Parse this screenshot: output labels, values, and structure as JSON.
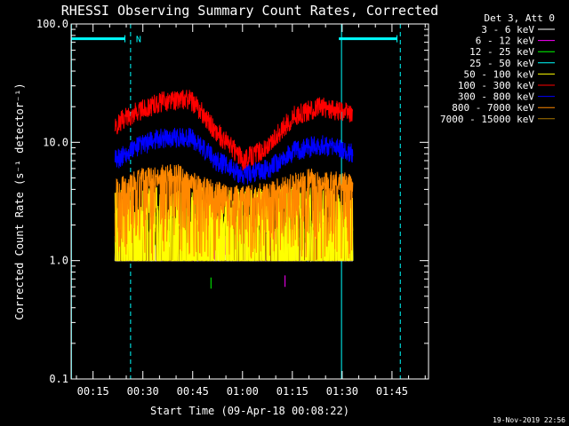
{
  "chart_data": {
    "type": "line",
    "title": "RHESSI Observing Summary Count Rates, Corrected",
    "xlabel": "Start Time (09-Apr-18 00:08:22)",
    "ylabel": "Corrected Count Rate (s⁻¹ detector⁻¹)",
    "y_scale": "log",
    "ylim": [
      0.1,
      100
    ],
    "y_tick_labels": [
      "100.0",
      "10.0",
      "1.0",
      "0.1"
    ],
    "y_tick_values": [
      100,
      10,
      1,
      0.1
    ],
    "xlim_minutes": [
      8.4,
      116
    ],
    "x_tick_labels": [
      "00:15",
      "00:30",
      "00:45",
      "01:00",
      "01:15",
      "01:30",
      "01:45"
    ],
    "x_tick_minutes": [
      15,
      30,
      45,
      60,
      75,
      90,
      105
    ],
    "legend_header": "Det 3, Att 0",
    "legend_placement": "right",
    "flag_label": "N",
    "night_bars": [
      {
        "start_minute": 8.4,
        "end_minute": 24.6,
        "y": 75
      },
      {
        "start_minute": 89,
        "end_minute": 106.5,
        "y": 75
      }
    ],
    "vlines_solid": [
      8.5,
      89.8
    ],
    "vlines_dashed": [
      26.3,
      107.5
    ],
    "data_window_minutes": [
      21.6,
      93.2
    ],
    "series": [
      {
        "name": "3 - 6 keV",
        "color": "#ffffff",
        "level": 1.1
      },
      {
        "name": "6 - 12 keV",
        "color": "#ff00ff",
        "level": 1.3
      },
      {
        "name": "12 - 25 keV",
        "color": "#00ff00",
        "level": 1.3
      },
      {
        "name": "25 - 50 keV",
        "color": "#00ffff",
        "level": 1.2
      },
      {
        "name": "50 - 100 keV",
        "color": "#ffff00",
        "level": 3.0
      },
      {
        "name": "100 - 300 keV",
        "color": "#ff0000",
        "peaks": [
          [
            21.6,
            14
          ],
          [
            28,
            18
          ],
          [
            36,
            22
          ],
          [
            44,
            23
          ],
          [
            52,
            12
          ],
          [
            60,
            7
          ],
          [
            68,
            9
          ],
          [
            76,
            17
          ],
          [
            84,
            20
          ],
          [
            93.2,
            17
          ]
        ]
      },
      {
        "name": "300 - 800 keV",
        "color": "#0000ff",
        "peaks": [
          [
            21.6,
            7
          ],
          [
            28,
            9
          ],
          [
            36,
            11
          ],
          [
            44,
            11
          ],
          [
            52,
            7
          ],
          [
            60,
            5.2
          ],
          [
            68,
            6
          ],
          [
            76,
            8.5
          ],
          [
            84,
            9.5
          ],
          [
            93.2,
            8
          ]
        ]
      },
      {
        "name": "800 - 7000 keV",
        "color": "#ff8800",
        "peaks": [
          [
            21.6,
            4
          ],
          [
            30,
            5
          ],
          [
            40,
            5.5
          ],
          [
            50,
            4
          ],
          [
            60,
            3.5
          ],
          [
            70,
            4
          ],
          [
            80,
            5
          ],
          [
            93.2,
            4.5
          ]
        ]
      },
      {
        "name": "7000 - 15000 keV",
        "color": "#aa7700",
        "level": 2.0
      }
    ]
  },
  "footer": {
    "timestamp": "19-Nov-2019 22:56"
  }
}
